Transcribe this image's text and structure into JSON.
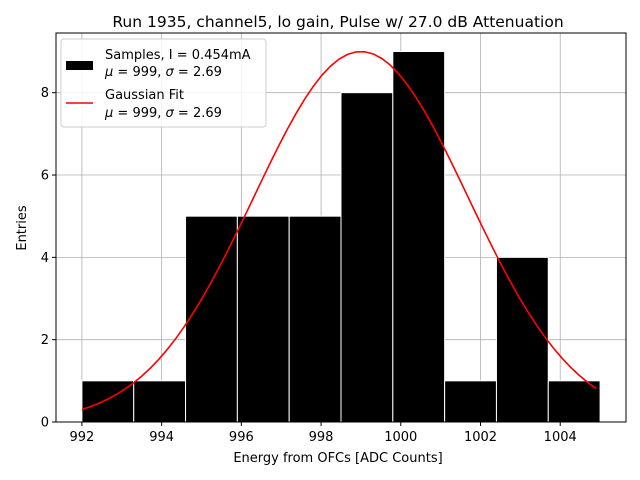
{
  "chart_data": {
    "type": "bar",
    "title": "Run 1935, channel5, lo gain, Pulse w/ 27.0 dB Attenuation",
    "xlabel": "Energy from OFCs [ADC Counts]",
    "ylabel": "Entries",
    "xlim": [
      991.35,
      1005.65
    ],
    "ylim": [
      0,
      9.45
    ],
    "grid": true,
    "xticks": [
      992,
      994,
      996,
      998,
      1000,
      1002,
      1004
    ],
    "yticks": [
      0,
      2,
      4,
      6,
      8
    ],
    "bin_edges": [
      992.0,
      993.3,
      994.6,
      995.9,
      997.2,
      998.5,
      999.8,
      1001.1,
      1002.4,
      1003.7,
      1005.0
    ],
    "counts": [
      1,
      1,
      5,
      5,
      5,
      8,
      9,
      1,
      4,
      1
    ],
    "fit": {
      "type": "gaussian",
      "mu": 999,
      "sigma": 2.69,
      "amplitude": 9.0,
      "x_range": [
        992.0,
        1004.9
      ]
    },
    "colors": {
      "bars": "#000000",
      "bar_edge": "#ffffff",
      "fit": "#ff0000",
      "grid": "#b0b0b0"
    },
    "legend": {
      "position": "top-left",
      "entries": [
        {
          "marker": "bar",
          "line1": "Samples, I = 0.454mA",
          "line2_prefix": "",
          "mu_symbol": "μ",
          "mid": " = 999, ",
          "sigma_symbol": "σ",
          "tail": " = 2.69"
        },
        {
          "marker": "line",
          "line1": "Gaussian Fit",
          "mu_symbol": "μ",
          "mid": " = 999, ",
          "sigma_symbol": "σ",
          "tail": " = 2.69"
        }
      ]
    }
  }
}
